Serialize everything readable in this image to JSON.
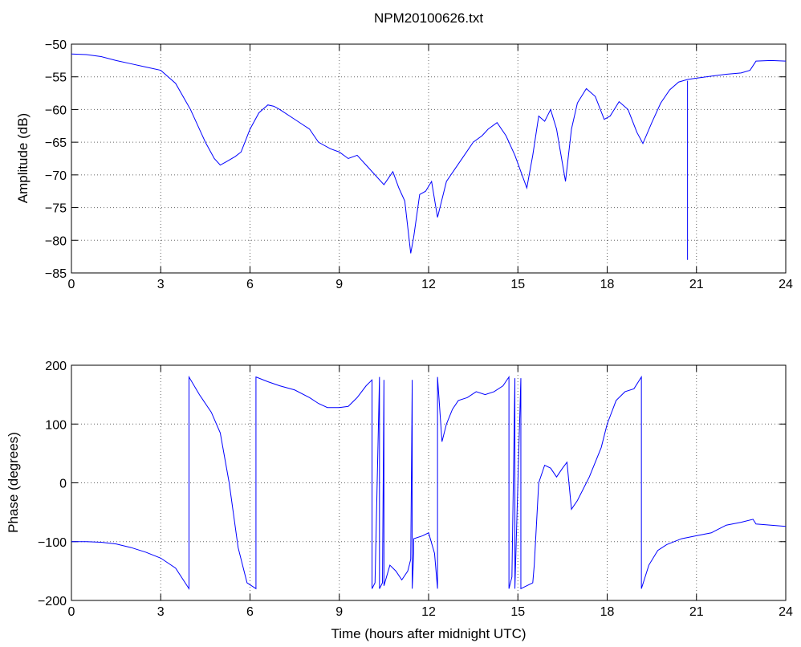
{
  "figure": {
    "title": "NPM20100626.txt"
  },
  "chart_data": [
    {
      "type": "line",
      "title": "NPM20100626.txt",
      "xlabel": "",
      "ylabel": "Amplitude (dB)",
      "xlim": [
        0,
        24
      ],
      "ylim": [
        -85,
        -50
      ],
      "xticks": [
        0,
        3,
        6,
        9,
        12,
        15,
        18,
        21,
        24
      ],
      "yticks": [
        -85,
        -80,
        -75,
        -70,
        -65,
        -60,
        -55,
        -50
      ],
      "grid": true,
      "series": [
        {
          "color": "#0000ff",
          "x": [
            0,
            0.5,
            1,
            1.5,
            2,
            2.5,
            3,
            3.5,
            4,
            4.5,
            4.8,
            5.0,
            5.2,
            5.5,
            5.7,
            6.0,
            6.3,
            6.6,
            6.8,
            7.0,
            7.5,
            8.0,
            8.3,
            8.7,
            9.0,
            9.3,
            9.6,
            9.9,
            10.2,
            10.5,
            10.8,
            11.0,
            11.2,
            11.4,
            11.5,
            11.7,
            11.9,
            12.1,
            12.3,
            12.6,
            12.9,
            13.2,
            13.5,
            13.8,
            14.0,
            14.3,
            14.6,
            14.9,
            15.1,
            15.3,
            15.5,
            15.7,
            15.9,
            16.1,
            16.3,
            16.6,
            16.8,
            17.0,
            17.3,
            17.6,
            17.9,
            18.1,
            18.4,
            18.7,
            19.0,
            19.2,
            19.5,
            19.8,
            20.1,
            20.4,
            20.7,
            21.0,
            21.5,
            22.0,
            22.5,
            22.8,
            23.0,
            23.5,
            24.0
          ],
          "y": [
            -51.5,
            -51.6,
            -51.9,
            -52.5,
            -53.0,
            -53.5,
            -54.0,
            -56.0,
            -60.0,
            -65.0,
            -67.5,
            -68.5,
            -68.0,
            -67.2,
            -66.5,
            -63.0,
            -60.5,
            -59.3,
            -59.5,
            -60.0,
            -61.5,
            -63.0,
            -65.0,
            -66.0,
            -66.5,
            -67.5,
            -67.0,
            -68.5,
            -70.0,
            -71.5,
            -69.5,
            -72.0,
            -74.0,
            -82.0,
            -79.5,
            -73.0,
            -72.5,
            -71.0,
            -76.5,
            -71.0,
            -69.0,
            -67.0,
            -65.0,
            -64.0,
            -63.0,
            -62.0,
            -64.0,
            -67.0,
            -69.5,
            -72.0,
            -67.0,
            -61.0,
            -61.8,
            -60.0,
            -63.0,
            -71.0,
            -63.0,
            -59.0,
            -56.8,
            -58.0,
            -61.5,
            -61.0,
            -58.8,
            -60.0,
            -63.5,
            -65.2,
            -62.0,
            -59.0,
            -57.0,
            -55.8,
            -55.4,
            -55.2,
            -54.9,
            -54.6,
            -54.4,
            -54.0,
            -52.6,
            -52.5,
            -52.6
          ]
        }
      ],
      "spike": {
        "x": 20.7,
        "y_min": -83.0,
        "y_max": -55.6
      }
    },
    {
      "type": "line",
      "title": "",
      "xlabel": "Time (hours after midnight UTC)",
      "ylabel": "Phase (degrees)",
      "xlim": [
        0,
        24
      ],
      "ylim": [
        -200,
        200
      ],
      "xticks": [
        0,
        3,
        6,
        9,
        12,
        15,
        18,
        21,
        24
      ],
      "yticks": [
        -200,
        -100,
        0,
        100,
        200
      ],
      "grid": true,
      "series": [
        {
          "color": "#0000ff",
          "x": [
            0,
            0.5,
            1,
            1.5,
            2,
            2.5,
            3,
            3.5,
            3.95,
            3.95,
            4.3,
            4.7,
            5.0,
            5.3,
            5.6,
            5.9,
            6.2,
            6.2,
            6.6,
            7.0,
            7.5,
            8.0,
            8.3,
            8.6,
            9.0,
            9.3,
            9.6,
            9.9,
            10.1,
            10.1,
            10.2,
            10.35,
            10.35,
            10.45,
            10.5,
            10.5,
            10.7,
            10.9,
            11.1,
            11.3,
            11.4,
            11.45,
            11.45,
            11.5,
            11.5,
            11.8,
            12.0,
            12.2,
            12.3,
            12.3,
            12.45,
            12.6,
            12.8,
            13.0,
            13.3,
            13.6,
            13.9,
            14.2,
            14.5,
            14.7,
            14.7,
            14.8,
            14.9,
            14.9,
            15.1,
            15.1,
            15.3,
            15.5,
            15.55,
            15.7,
            15.9,
            16.1,
            16.3,
            16.5,
            16.65,
            16.8,
            17.0,
            17.4,
            17.8,
            18.0,
            18.3,
            18.6,
            18.9,
            19.15,
            19.15,
            19.4,
            19.7,
            20.0,
            20.5,
            21.0,
            21.5,
            22.0,
            22.5,
            22.9,
            23.0,
            23.5,
            24.0
          ],
          "y": [
            -100,
            -100,
            -101,
            -104,
            -110,
            -118,
            -128,
            -145,
            -180,
            180,
            150,
            120,
            85,
            0,
            -110,
            -170,
            -180,
            180,
            172,
            165,
            158,
            145,
            135,
            128,
            128,
            130,
            145,
            165,
            175,
            -180,
            -170,
            180,
            -180,
            -170,
            175,
            -175,
            -140,
            -150,
            -165,
            -150,
            -130,
            175,
            -180,
            -120,
            -95,
            -90,
            -85,
            -120,
            -180,
            180,
            70,
            100,
            125,
            140,
            145,
            155,
            150,
            155,
            165,
            180,
            -180,
            -160,
            178,
            -180,
            178,
            -180,
            -175,
            -170,
            -140,
            0,
            30,
            25,
            10,
            25,
            35,
            -45,
            -30,
            10,
            60,
            100,
            140,
            155,
            160,
            180,
            -180,
            -140,
            -115,
            -105,
            -95,
            -90,
            -85,
            -72,
            -67,
            -62,
            -70,
            -72,
            -74
          ]
        }
      ]
    }
  ]
}
